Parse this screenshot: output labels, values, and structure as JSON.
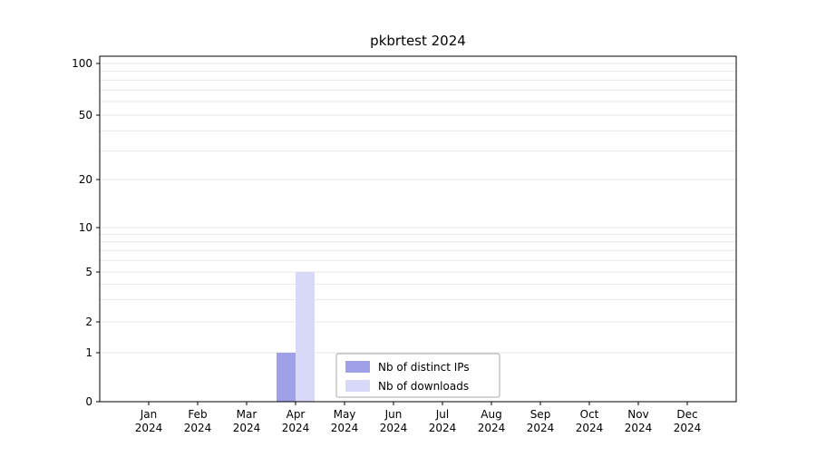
{
  "chart_data": {
    "type": "bar",
    "title": "pkbrtest 2024",
    "categories": [
      "Jan 2024",
      "Feb 2024",
      "Mar 2024",
      "Apr 2024",
      "May 2024",
      "Jun 2024",
      "Jul 2024",
      "Aug 2024",
      "Sep 2024",
      "Oct 2024",
      "Nov 2024",
      "Dec 2024"
    ],
    "series": [
      {
        "name": "Nb of distinct IPs",
        "color": "#a0a0e8",
        "values": [
          0,
          0,
          0,
          1,
          0,
          0,
          0,
          0,
          0,
          0,
          0,
          0
        ]
      },
      {
        "name": "Nb of downloads",
        "color": "#d8d8f8",
        "values": [
          0,
          0,
          0,
          5,
          0,
          0,
          0,
          0,
          0,
          0,
          0,
          0
        ]
      }
    ],
    "yticks": [
      0,
      1,
      2,
      5,
      10,
      20,
      50,
      100
    ],
    "ylim": [
      0,
      100
    ],
    "yscale": "symlog",
    "grid": true,
    "legend": {
      "position": "lower center",
      "entries": [
        "Nb of distinct IPs",
        "Nb of downloads"
      ]
    }
  },
  "colors": {
    "grid": "#e7e7e7",
    "axis": "#000000",
    "legend_border": "#aaaaaa",
    "background": "#ffffff"
  }
}
